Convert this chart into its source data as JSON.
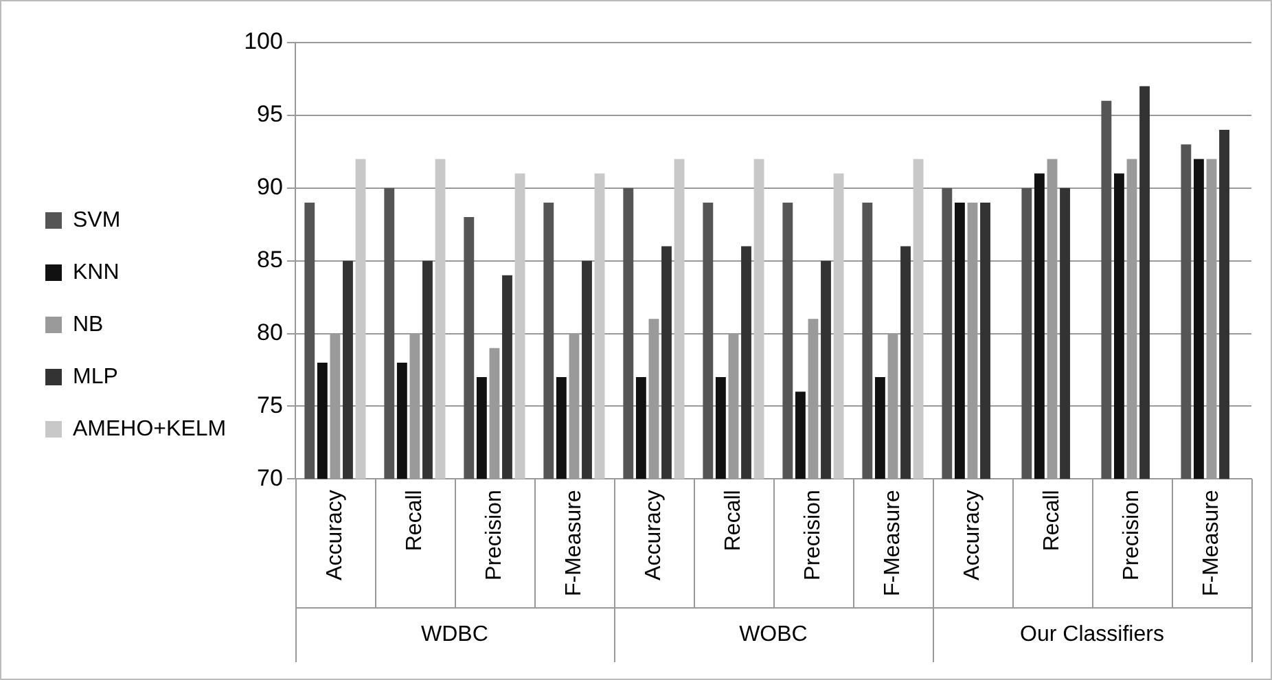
{
  "chart_data": {
    "type": "bar",
    "categories": [
      "Accuracy",
      "Recall",
      "Precision",
      "F-Measure",
      "Accuracy",
      "Recall",
      "Precision",
      "F-Measure",
      "Accuracy",
      "Recall",
      "Precision",
      "F-Measure"
    ],
    "series": [
      {
        "name": "SVM",
        "color": "#555555",
        "values": [
          89,
          90,
          88,
          89,
          90,
          89,
          89,
          89,
          90,
          90,
          96,
          93
        ]
      },
      {
        "name": "KNN",
        "color": "#111111",
        "values": [
          78,
          78,
          77,
          77,
          77,
          77,
          76,
          77,
          89,
          91,
          91,
          92
        ]
      },
      {
        "name": "NB",
        "color": "#9a9a9a",
        "values": [
          80,
          80,
          79,
          80,
          81,
          80,
          81,
          80,
          89,
          92,
          92,
          92
        ]
      },
      {
        "name": "MLP",
        "color": "#333333",
        "values": [
          85,
          85,
          84,
          85,
          86,
          86,
          85,
          86,
          89,
          90,
          97,
          94
        ]
      },
      {
        "name": "AMEHO+KELM",
        "color": "#c8c8c8",
        "values": [
          92,
          92,
          91,
          91,
          92,
          92,
          91,
          92,
          null,
          null,
          null,
          null
        ]
      }
    ],
    "annotations": [
      "WDBC",
      "WOBC",
      "Our Classifiers"
    ],
    "ylim": [
      70,
      100
    ],
    "yticks": [
      70,
      75,
      80,
      85,
      90,
      95,
      100
    ],
    "grid": "y",
    "legend": "left"
  }
}
